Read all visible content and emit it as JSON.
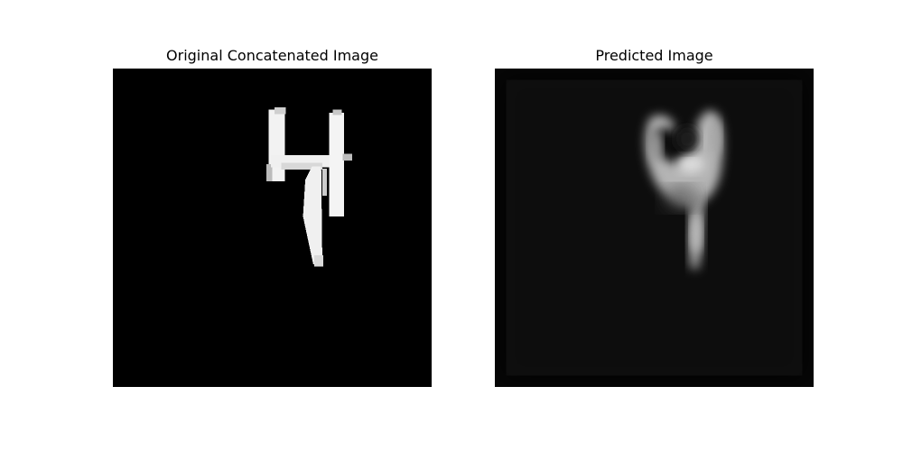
{
  "figure": {
    "panels": [
      {
        "title": "Original Concatenated Image",
        "icon": "digit-4-mnist-image"
      },
      {
        "title": "Predicted Image",
        "icon": "blurred-digit-prediction-image"
      }
    ],
    "colors": {
      "background": "#ffffff",
      "image_background": "#000000",
      "foreground": "#ffffff",
      "prediction_tone": "#c8c8c8"
    }
  }
}
